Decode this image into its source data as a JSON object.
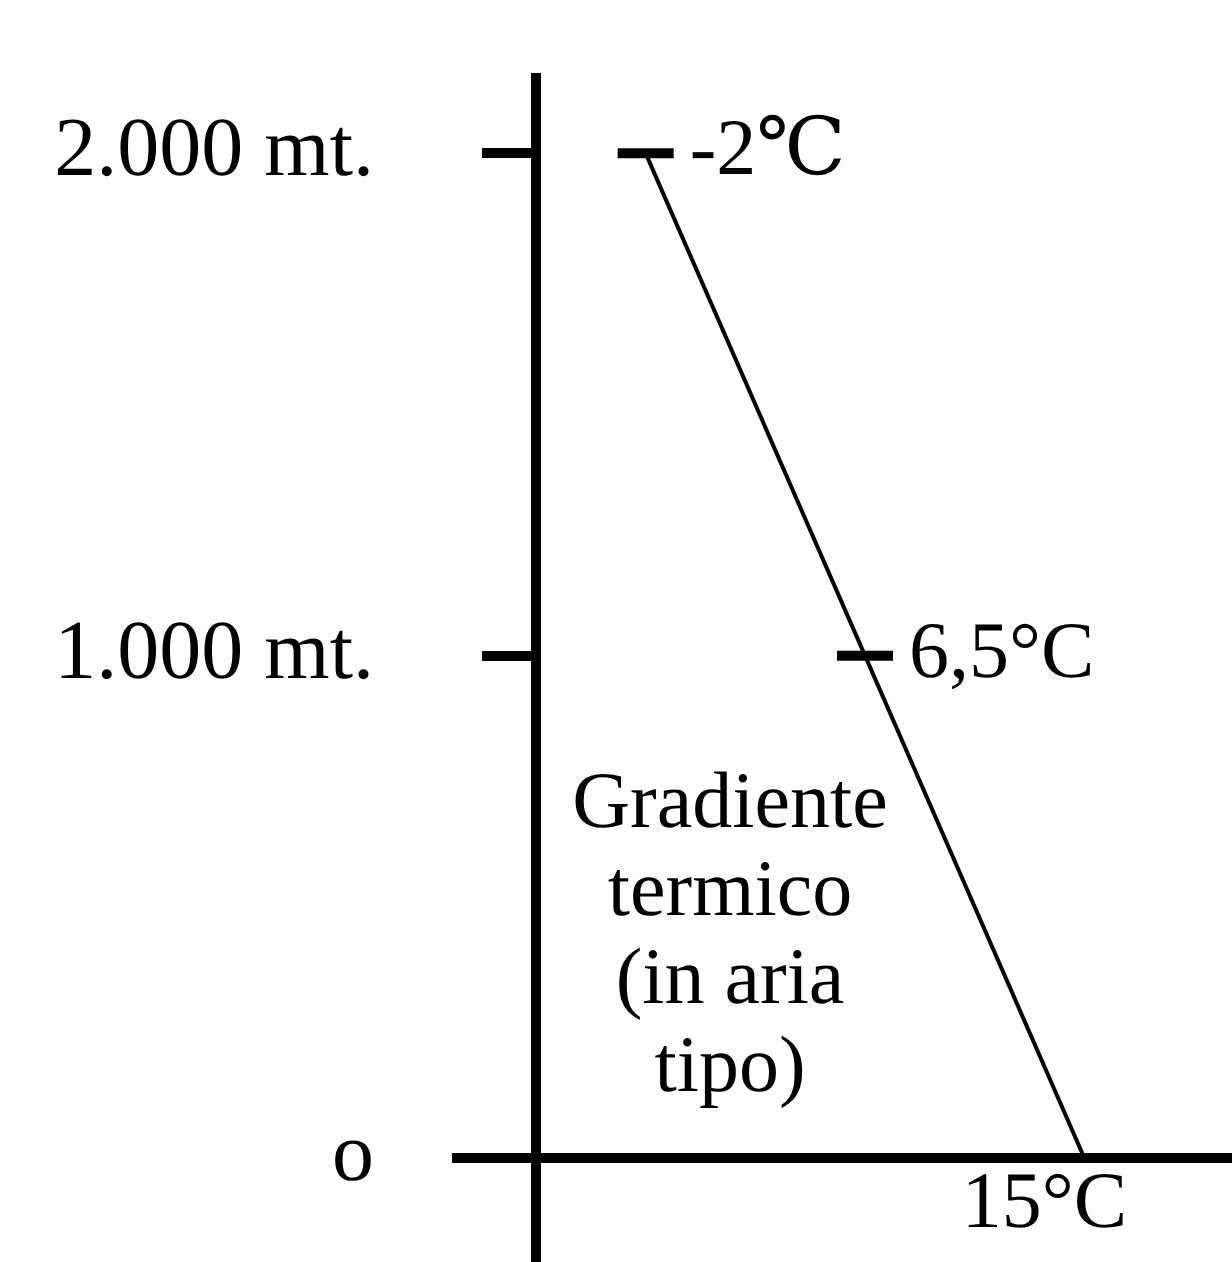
{
  "chart_data": {
    "type": "line",
    "categories": [
      null,
      null,
      null
    ],
    "series": [
      {
        "color": "#000000",
        "values": [
          2000,
          1000,
          0
        ]
      }
    ],
    "ylim": [
      0,
      2150
    ],
    "yticks": [
      {
        "value": 0,
        "label": "o"
      },
      {
        "value": 1000,
        "label": "1.000 mt."
      },
      {
        "value": 2000,
        "label": "2.000 mt."
      }
    ],
    "annotations": [
      "Gradiente termico (in aria tipo)",
      "-2℃",
      "6,5°C",
      "15°C"
    ],
    "tick_labels": "y",
    "grid": false,
    "legend": false
  }
}
